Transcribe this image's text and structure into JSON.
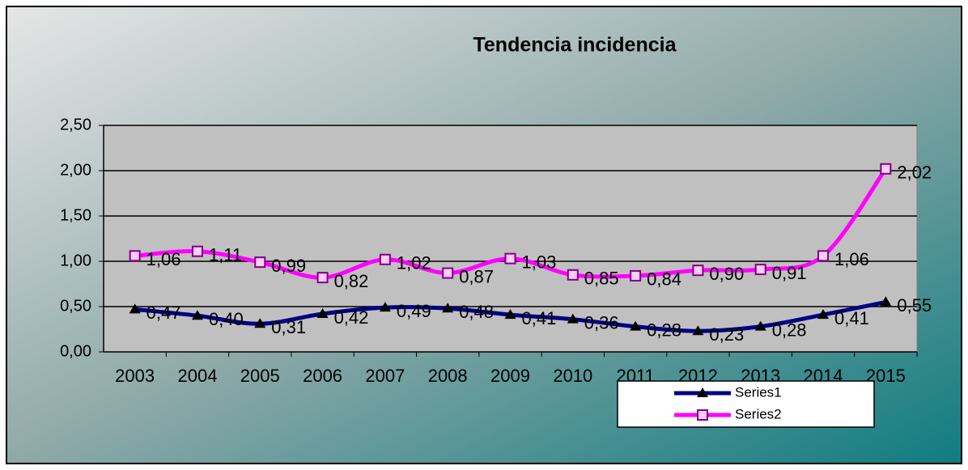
{
  "chart_data": {
    "type": "line",
    "title": "Tendencia incidencia",
    "categories": [
      "2003",
      "2004",
      "2005",
      "2006",
      "2007",
      "2008",
      "2009",
      "2010",
      "2011",
      "2012",
      "2013",
      "2014",
      "2015"
    ],
    "series": [
      {
        "name": "Series1",
        "color": "#000080",
        "marker": "triangle",
        "values": [
          0.47,
          0.4,
          0.31,
          0.42,
          0.49,
          0.48,
          0.41,
          0.36,
          0.28,
          0.23,
          0.28,
          0.41,
          0.55
        ],
        "value_labels": [
          "0,47",
          "0,40",
          "0,31",
          "0,42",
          "0,49",
          "0,48",
          "0,41",
          "0,36",
          "0,28",
          "0,23",
          "0,28",
          "0,41",
          "0,55"
        ]
      },
      {
        "name": "Series2",
        "color": "#ff00ff",
        "marker": "square",
        "values": [
          1.06,
          1.11,
          0.99,
          0.82,
          1.02,
          0.87,
          1.03,
          0.85,
          0.84,
          0.9,
          0.91,
          1.06,
          2.02
        ],
        "value_labels": [
          "1,06",
          "1,11",
          "0,99",
          "0,82",
          "1,02",
          "0,87",
          "1,03",
          "0,85",
          "0,84",
          "0,90",
          "0,91",
          "1,06",
          "2,02"
        ]
      }
    ],
    "ylim": [
      0,
      2.5
    ],
    "yticks": [
      {
        "value": 0,
        "label": "0,00"
      },
      {
        "value": 0.5,
        "label": "0,50"
      },
      {
        "value": 1,
        "label": "1,00"
      },
      {
        "value": 1.5,
        "label": "1,50"
      },
      {
        "value": 2,
        "label": "2,00"
      },
      {
        "value": 2.5,
        "label": "2,50"
      }
    ],
    "grid": true,
    "legend": "bottom"
  }
}
